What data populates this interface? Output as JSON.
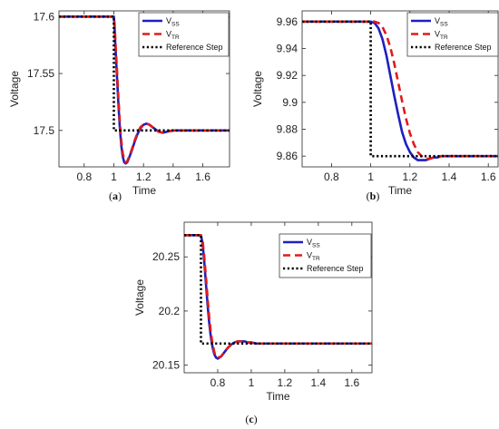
{
  "chart_data": [
    {
      "type": "line",
      "panel": "a",
      "caption_letter": "a",
      "xlabel": "Time",
      "ylabel": "Voltage",
      "xlim": [
        0.63,
        1.78
      ],
      "ylim": [
        17.468,
        17.605
      ],
      "xticks": [
        0.8,
        1,
        1.2,
        1.4,
        1.6
      ],
      "xtick_labels": [
        "0.8",
        "1",
        "1.2",
        "1.4",
        "1.6"
      ],
      "yticks": [
        17.5,
        17.55,
        17.6
      ],
      "ytick_labels": [
        "17.5",
        "17.55",
        "17.6"
      ],
      "grid": false,
      "legend_position": "top-right",
      "series": [
        {
          "name": "V",
          "subscript": "SS",
          "color": "#1f1fbf",
          "style": "solid",
          "x": [
            0.63,
            1.0,
            1.005,
            1.01,
            1.02,
            1.03,
            1.04,
            1.05,
            1.06,
            1.07,
            1.08,
            1.09,
            1.1,
            1.12,
            1.14,
            1.16,
            1.18,
            1.2,
            1.22,
            1.24,
            1.26,
            1.28,
            1.3,
            1.33,
            1.36,
            1.4,
            1.45,
            1.5,
            1.78
          ],
          "y": [
            17.6,
            17.6,
            17.59,
            17.575,
            17.55,
            17.525,
            17.503,
            17.487,
            17.477,
            17.472,
            17.471,
            17.472,
            17.475,
            17.482,
            17.49,
            17.497,
            17.502,
            17.505,
            17.506,
            17.505,
            17.503,
            17.501,
            17.499,
            17.498,
            17.499,
            17.5,
            17.5,
            17.5,
            17.5
          ]
        },
        {
          "name": "V",
          "subscript": "TR",
          "color": "#e01b1b",
          "style": "dashed",
          "x": [
            0.63,
            1.0,
            1.005,
            1.01,
            1.02,
            1.03,
            1.04,
            1.05,
            1.06,
            1.07,
            1.08,
            1.09,
            1.1,
            1.12,
            1.14,
            1.16,
            1.18,
            1.2,
            1.22,
            1.24,
            1.26,
            1.28,
            1.3,
            1.33,
            1.36,
            1.4,
            1.45,
            1.5,
            1.78
          ],
          "y": [
            17.6,
            17.6,
            17.593,
            17.58,
            17.556,
            17.53,
            17.508,
            17.491,
            17.48,
            17.474,
            17.472,
            17.473,
            17.476,
            17.483,
            17.491,
            17.498,
            17.503,
            17.505,
            17.506,
            17.505,
            17.503,
            17.501,
            17.499,
            17.498,
            17.499,
            17.5,
            17.5,
            17.5,
            17.5
          ]
        },
        {
          "name": "Reference Step",
          "subscript": "",
          "color": "#000000",
          "style": "dotted",
          "x": [
            0.63,
            1.0,
            1.0,
            1.78
          ],
          "y": [
            17.6,
            17.6,
            17.5,
            17.5
          ]
        }
      ]
    },
    {
      "type": "line",
      "panel": "b",
      "caption_letter": "b",
      "xlabel": "Time",
      "ylabel": "Voltage",
      "xlim": [
        0.65,
        1.65
      ],
      "ylim": [
        9.852,
        9.968
      ],
      "xticks": [
        0.8,
        1,
        1.2,
        1.4,
        1.6
      ],
      "xtick_labels": [
        "0.8",
        "1",
        "1.2",
        "1.4",
        "1.6"
      ],
      "yticks": [
        9.86,
        9.88,
        9.9,
        9.92,
        9.94,
        9.96
      ],
      "ytick_labels": [
        "9.86",
        "9.88",
        "9.9",
        "9.92",
        "9.94",
        "9.96"
      ],
      "grid": false,
      "legend_position": "top-right",
      "series": [
        {
          "name": "V",
          "subscript": "SS",
          "color": "#1f1fbf",
          "style": "solid",
          "x": [
            0.65,
            1.0,
            1.02,
            1.04,
            1.06,
            1.08,
            1.1,
            1.12,
            1.14,
            1.16,
            1.18,
            1.2,
            1.22,
            1.24,
            1.26,
            1.28,
            1.3,
            1.32,
            1.34,
            1.36,
            1.4,
            1.45,
            1.5,
            1.65
          ],
          "y": [
            9.96,
            9.96,
            9.959,
            9.955,
            9.947,
            9.935,
            9.92,
            9.905,
            9.891,
            9.878,
            9.869,
            9.863,
            9.859,
            9.857,
            9.857,
            9.857,
            9.858,
            9.859,
            9.859,
            9.86,
            9.86,
            9.86,
            9.86,
            9.86
          ]
        },
        {
          "name": "V",
          "subscript": "TR",
          "color": "#e01b1b",
          "style": "dashed",
          "x": [
            0.65,
            1.0,
            1.02,
            1.04,
            1.06,
            1.08,
            1.1,
            1.12,
            1.14,
            1.16,
            1.18,
            1.2,
            1.22,
            1.24,
            1.26,
            1.28,
            1.3,
            1.32,
            1.34,
            1.36,
            1.4,
            1.45,
            1.5,
            1.65
          ],
          "y": [
            9.96,
            9.96,
            9.96,
            9.959,
            9.956,
            9.95,
            9.941,
            9.929,
            9.915,
            9.901,
            9.888,
            9.877,
            9.869,
            9.863,
            9.86,
            9.858,
            9.858,
            9.859,
            9.859,
            9.86,
            9.86,
            9.86,
            9.86,
            9.86
          ]
        },
        {
          "name": "Reference Step",
          "subscript": "",
          "color": "#000000",
          "style": "dotted",
          "x": [
            0.65,
            1.0,
            1.0,
            1.65
          ],
          "y": [
            9.96,
            9.96,
            9.86,
            9.86
          ]
        }
      ]
    },
    {
      "type": "line",
      "panel": "c",
      "caption_letter": "c",
      "xlabel": "Time",
      "ylabel": "Voltage",
      "xlim": [
        0.6,
        1.72
      ],
      "ylim": [
        20.143,
        20.282
      ],
      "xticks": [
        0.8,
        1,
        1.2,
        1.4,
        1.6
      ],
      "xtick_labels": [
        "0.8",
        "1",
        "1.2",
        "1.4",
        "1.6"
      ],
      "yticks": [
        20.15,
        20.2,
        20.25
      ],
      "ytick_labels": [
        "20.15",
        "20.2",
        "20.25"
      ],
      "grid": false,
      "legend_position": "top-right",
      "series": [
        {
          "name": "V",
          "subscript": "SS",
          "color": "#1f1fbf",
          "style": "solid",
          "x": [
            0.6,
            0.7,
            0.71,
            0.72,
            0.73,
            0.74,
            0.75,
            0.76,
            0.77,
            0.78,
            0.79,
            0.8,
            0.82,
            0.84,
            0.86,
            0.88,
            0.9,
            0.92,
            0.94,
            0.96,
            0.98,
            1.0,
            1.03,
            1.06,
            1.1,
            1.72
          ],
          "y": [
            20.27,
            20.27,
            20.262,
            20.245,
            20.225,
            20.205,
            20.188,
            20.175,
            20.166,
            20.16,
            20.157,
            20.156,
            20.158,
            20.162,
            20.166,
            20.169,
            20.171,
            20.172,
            20.172,
            20.172,
            20.171,
            20.171,
            20.17,
            20.17,
            20.17,
            20.17
          ]
        },
        {
          "name": "V",
          "subscript": "TR",
          "color": "#e01b1b",
          "style": "dashed",
          "x": [
            0.6,
            0.7,
            0.71,
            0.72,
            0.73,
            0.74,
            0.75,
            0.76,
            0.77,
            0.78,
            0.79,
            0.8,
            0.82,
            0.84,
            0.86,
            0.88,
            0.9,
            0.92,
            0.94,
            0.96,
            0.98,
            1.0,
            1.03,
            1.06,
            1.1,
            1.72
          ],
          "y": [
            20.27,
            20.27,
            20.265,
            20.25,
            20.231,
            20.211,
            20.193,
            20.179,
            20.169,
            20.162,
            20.158,
            20.157,
            20.158,
            20.162,
            20.166,
            20.169,
            20.171,
            20.172,
            20.172,
            20.172,
            20.171,
            20.171,
            20.17,
            20.17,
            20.17,
            20.17
          ]
        },
        {
          "name": "Reference Step",
          "subscript": "",
          "color": "#000000",
          "style": "dotted",
          "x": [
            0.6,
            0.7,
            0.7,
            1.72
          ],
          "y": [
            20.27,
            20.27,
            20.17,
            20.17
          ]
        }
      ]
    }
  ]
}
